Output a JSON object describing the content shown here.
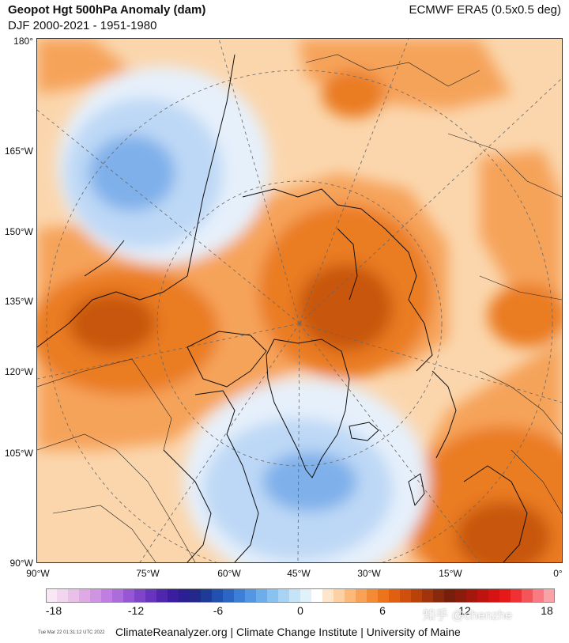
{
  "header": {
    "title": "Geopot Hgt 500hPa Anomaly (dam)",
    "subtitle": "DJF 2000-2021 - 1951-1980",
    "source": "ECMWF ERA5 (0.5x0.5 deg)"
  },
  "map": {
    "projection": "polar",
    "left_axis_labels": [
      "180°",
      "165°W",
      "150°W",
      "135°W",
      "120°W",
      "105°W",
      "90°W"
    ],
    "bottom_axis_labels": [
      "90°W",
      "75°W",
      "60°W",
      "45°W",
      "30°W",
      "15°W",
      "0°"
    ],
    "colors": {
      "strong_negative": "#7fb0ea",
      "negative": "#bdd8f6",
      "weak_negative": "#e6f0fb",
      "weak_positive": "#fbd6ad",
      "positive": "#f6a35a",
      "strong_positive": "#ea7c22",
      "max_positive": "#c85610"
    }
  },
  "colorbar": {
    "tick_labels": [
      "-18",
      "-12",
      "-6",
      "0",
      "6",
      "12",
      "18"
    ],
    "colors": [
      "#f8e8f5",
      "#f2d6ee",
      "#e9c1e8",
      "#ddaae4",
      "#cf94e2",
      "#c07fe0",
      "#ac6cdc",
      "#9657d4",
      "#7f45c8",
      "#6834bb",
      "#5026ad",
      "#3a1da0",
      "#2c1f93",
      "#23288a",
      "#1e3b98",
      "#2150ae",
      "#2c66c5",
      "#3d7fd7",
      "#5397e2",
      "#6dadea",
      "#89c1f0",
      "#a7d4f4",
      "#c5e4f8",
      "#e1f1fb",
      "#ffffff",
      "#fee6cc",
      "#fdd1a4",
      "#fbb97c",
      "#f8a257",
      "#f38b36",
      "#ec751b",
      "#e06010",
      "#cf4f0c",
      "#b9410a",
      "#a0340a",
      "#88290b",
      "#76200b",
      "#8a1c0c",
      "#a3170d",
      "#bd140f",
      "#d41313",
      "#e61918",
      "#f13033",
      "#f55458",
      "#f77b80",
      "#f9a3a6"
    ]
  },
  "footer": {
    "timestamp": "Tue Mar 22 01:31:12 UTC 2022",
    "credit": "ClimateReanalyzer.org | Climate Change Institute | University of Maine",
    "watermark": "知乎 @chenzhe"
  }
}
